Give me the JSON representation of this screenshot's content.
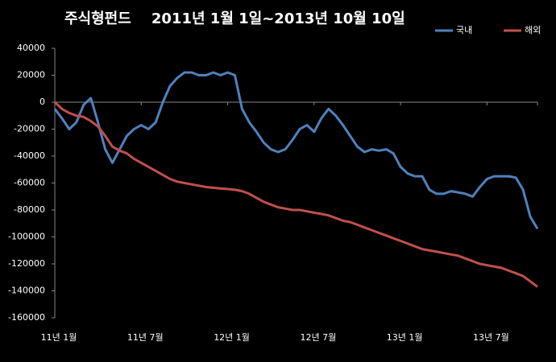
{
  "chart_data": {
    "type": "line",
    "title": "주식형펀드    2011년 1월 1일~2013년 10월 10일",
    "categories": [
      "11년 1월",
      null,
      null,
      null,
      null,
      null,
      null,
      null,
      null,
      null,
      null,
      null,
      "11년 7월",
      null,
      null,
      null,
      null,
      null,
      null,
      null,
      null,
      null,
      null,
      null,
      "12년 1월",
      null,
      null,
      null,
      null,
      null,
      null,
      null,
      null,
      null,
      null,
      null,
      "12년 7월",
      null,
      null,
      null,
      null,
      null,
      null,
      null,
      null,
      null,
      null,
      null,
      "13년 1월",
      null,
      null,
      null,
      null,
      null,
      null,
      null,
      null,
      null,
      null,
      null,
      "13년 7월",
      null,
      null,
      null,
      null,
      null,
      null,
      null
    ],
    "series": [
      {
        "name": "국내",
        "color": "#4f81bd",
        "values": [
          -5000,
          -12000,
          -20000,
          -15000,
          -2000,
          3000,
          -15000,
          -35000,
          -45000,
          -35000,
          -25000,
          -20000,
          -17000,
          -20000,
          -15000,
          0,
          12000,
          18000,
          22000,
          22000,
          20000,
          20000,
          22000,
          20000,
          22000,
          20000,
          -5000,
          -15000,
          -22000,
          -30000,
          -35000,
          -37000,
          -35000,
          -28000,
          -20000,
          -17000,
          -22000,
          -12000,
          -5000,
          -10000,
          -17000,
          -25000,
          -33000,
          -37000,
          -35000,
          -36000,
          -35000,
          -38000,
          -48000,
          -53000,
          -55000,
          -55000,
          -65000,
          -68000,
          -68000,
          -66000,
          -67000,
          -68000,
          -70000,
          -63000,
          -57000,
          -55000,
          -55000,
          -55000,
          -56000,
          -65000,
          -85000,
          -94000
        ]
      },
      {
        "name": "해외",
        "color": "#c0504d",
        "values": [
          0,
          -5000,
          -8000,
          -10000,
          -11000,
          -14000,
          -18000,
          -25000,
          -33000,
          -36000,
          -38000,
          -42000,
          -45000,
          -48000,
          -51000,
          -54000,
          -57000,
          -59000,
          -60000,
          -61000,
          -62000,
          -63000,
          -63500,
          -64000,
          -64500,
          -65000,
          -66000,
          -68000,
          -71000,
          -74000,
          -76000,
          -78000,
          -79000,
          -80000,
          -80000,
          -81000,
          -82000,
          -83000,
          -84000,
          -86000,
          -88000,
          -89000,
          -91000,
          -93000,
          -95000,
          -97000,
          -99000,
          -101000,
          -103000,
          -105000,
          -107000,
          -109000,
          -110000,
          -111000,
          -112000,
          -113000,
          -114000,
          -116000,
          -118000,
          -120000,
          -121000,
          -122000,
          -123000,
          -125000,
          -127000,
          -129000,
          -133000,
          -137000
        ]
      }
    ],
    "ylim": [
      -160000,
      40000
    ],
    "yticks": [
      -160000,
      -140000,
      -120000,
      -100000,
      -80000,
      -60000,
      -40000,
      -20000,
      0,
      20000,
      40000
    ],
    "grid": false,
    "legend": "top-right"
  }
}
